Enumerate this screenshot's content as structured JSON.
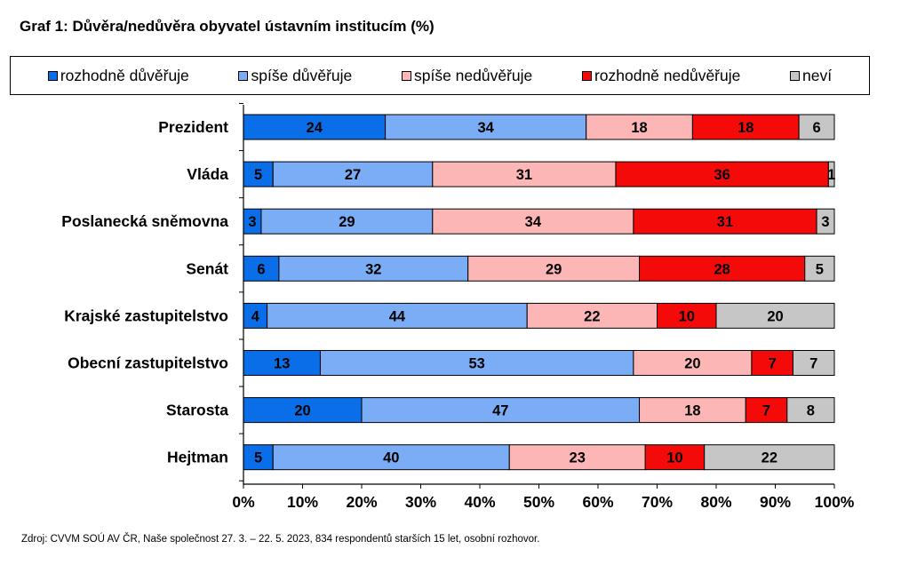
{
  "title": "Graf 1: Důvěra/nedůvěra obyvatel ústavním institucím (%)",
  "source": "Zdroj: CVVM SOÚ AV ČR, Naše společnost 27. 3. – 22. 5. 2023, 834 respondentů starších 15 let, osobní rozhovor.",
  "colors": {
    "rozhodne_duveruje": "#0a6ee8",
    "spise_duveruje": "#7aadf5",
    "spise_neduveruje": "#fcb6b5",
    "rozhodne_neduveruje": "#f50a0a",
    "nevi": "#c6c6c6"
  },
  "legend": [
    {
      "label": "rozhodně důvěřuje",
      "color": "#0a6ee8"
    },
    {
      "label": "spíše důvěřuje",
      "color": "#7aadf5"
    },
    {
      "label": "spíše nedůvěřuje",
      "color": "#fcb6b5"
    },
    {
      "label": "rozhodně nedůvěřuje",
      "color": "#f50a0a"
    },
    {
      "label": "neví",
      "color": "#c6c6c6"
    }
  ],
  "chart_data": {
    "type": "bar",
    "orientation": "horizontal",
    "stacked": true,
    "title": "Graf 1: Důvěra/nedůvěra obyvatel ústavním institucím (%)",
    "categories": [
      "Prezident",
      "Vláda",
      "Poslanecká sněmovna",
      "Senát",
      "Krajské zastupitelstvo",
      "Obecní zastupitelstvo",
      "Starosta",
      "Hejtman"
    ],
    "series": [
      {
        "name": "rozhodně důvěřuje",
        "values": [
          24,
          5,
          3,
          6,
          4,
          13,
          20,
          5
        ]
      },
      {
        "name": "spíše důvěřuje",
        "values": [
          34,
          27,
          29,
          32,
          44,
          53,
          47,
          40
        ]
      },
      {
        "name": "spíše nedůvěřuje",
        "values": [
          18,
          31,
          34,
          29,
          22,
          20,
          18,
          23
        ]
      },
      {
        "name": "rozhodně nedůvěřuje",
        "values": [
          18,
          36,
          31,
          28,
          10,
          7,
          7,
          10
        ]
      },
      {
        "name": "neví",
        "values": [
          6,
          1,
          3,
          5,
          20,
          7,
          8,
          22
        ]
      }
    ],
    "xlim": [
      0,
      100
    ],
    "xticks": [
      "0%",
      "10%",
      "20%",
      "30%",
      "40%",
      "50%",
      "60%",
      "70%",
      "80%",
      "90%",
      "100%"
    ],
    "grid": false,
    "legend_position": "top"
  }
}
